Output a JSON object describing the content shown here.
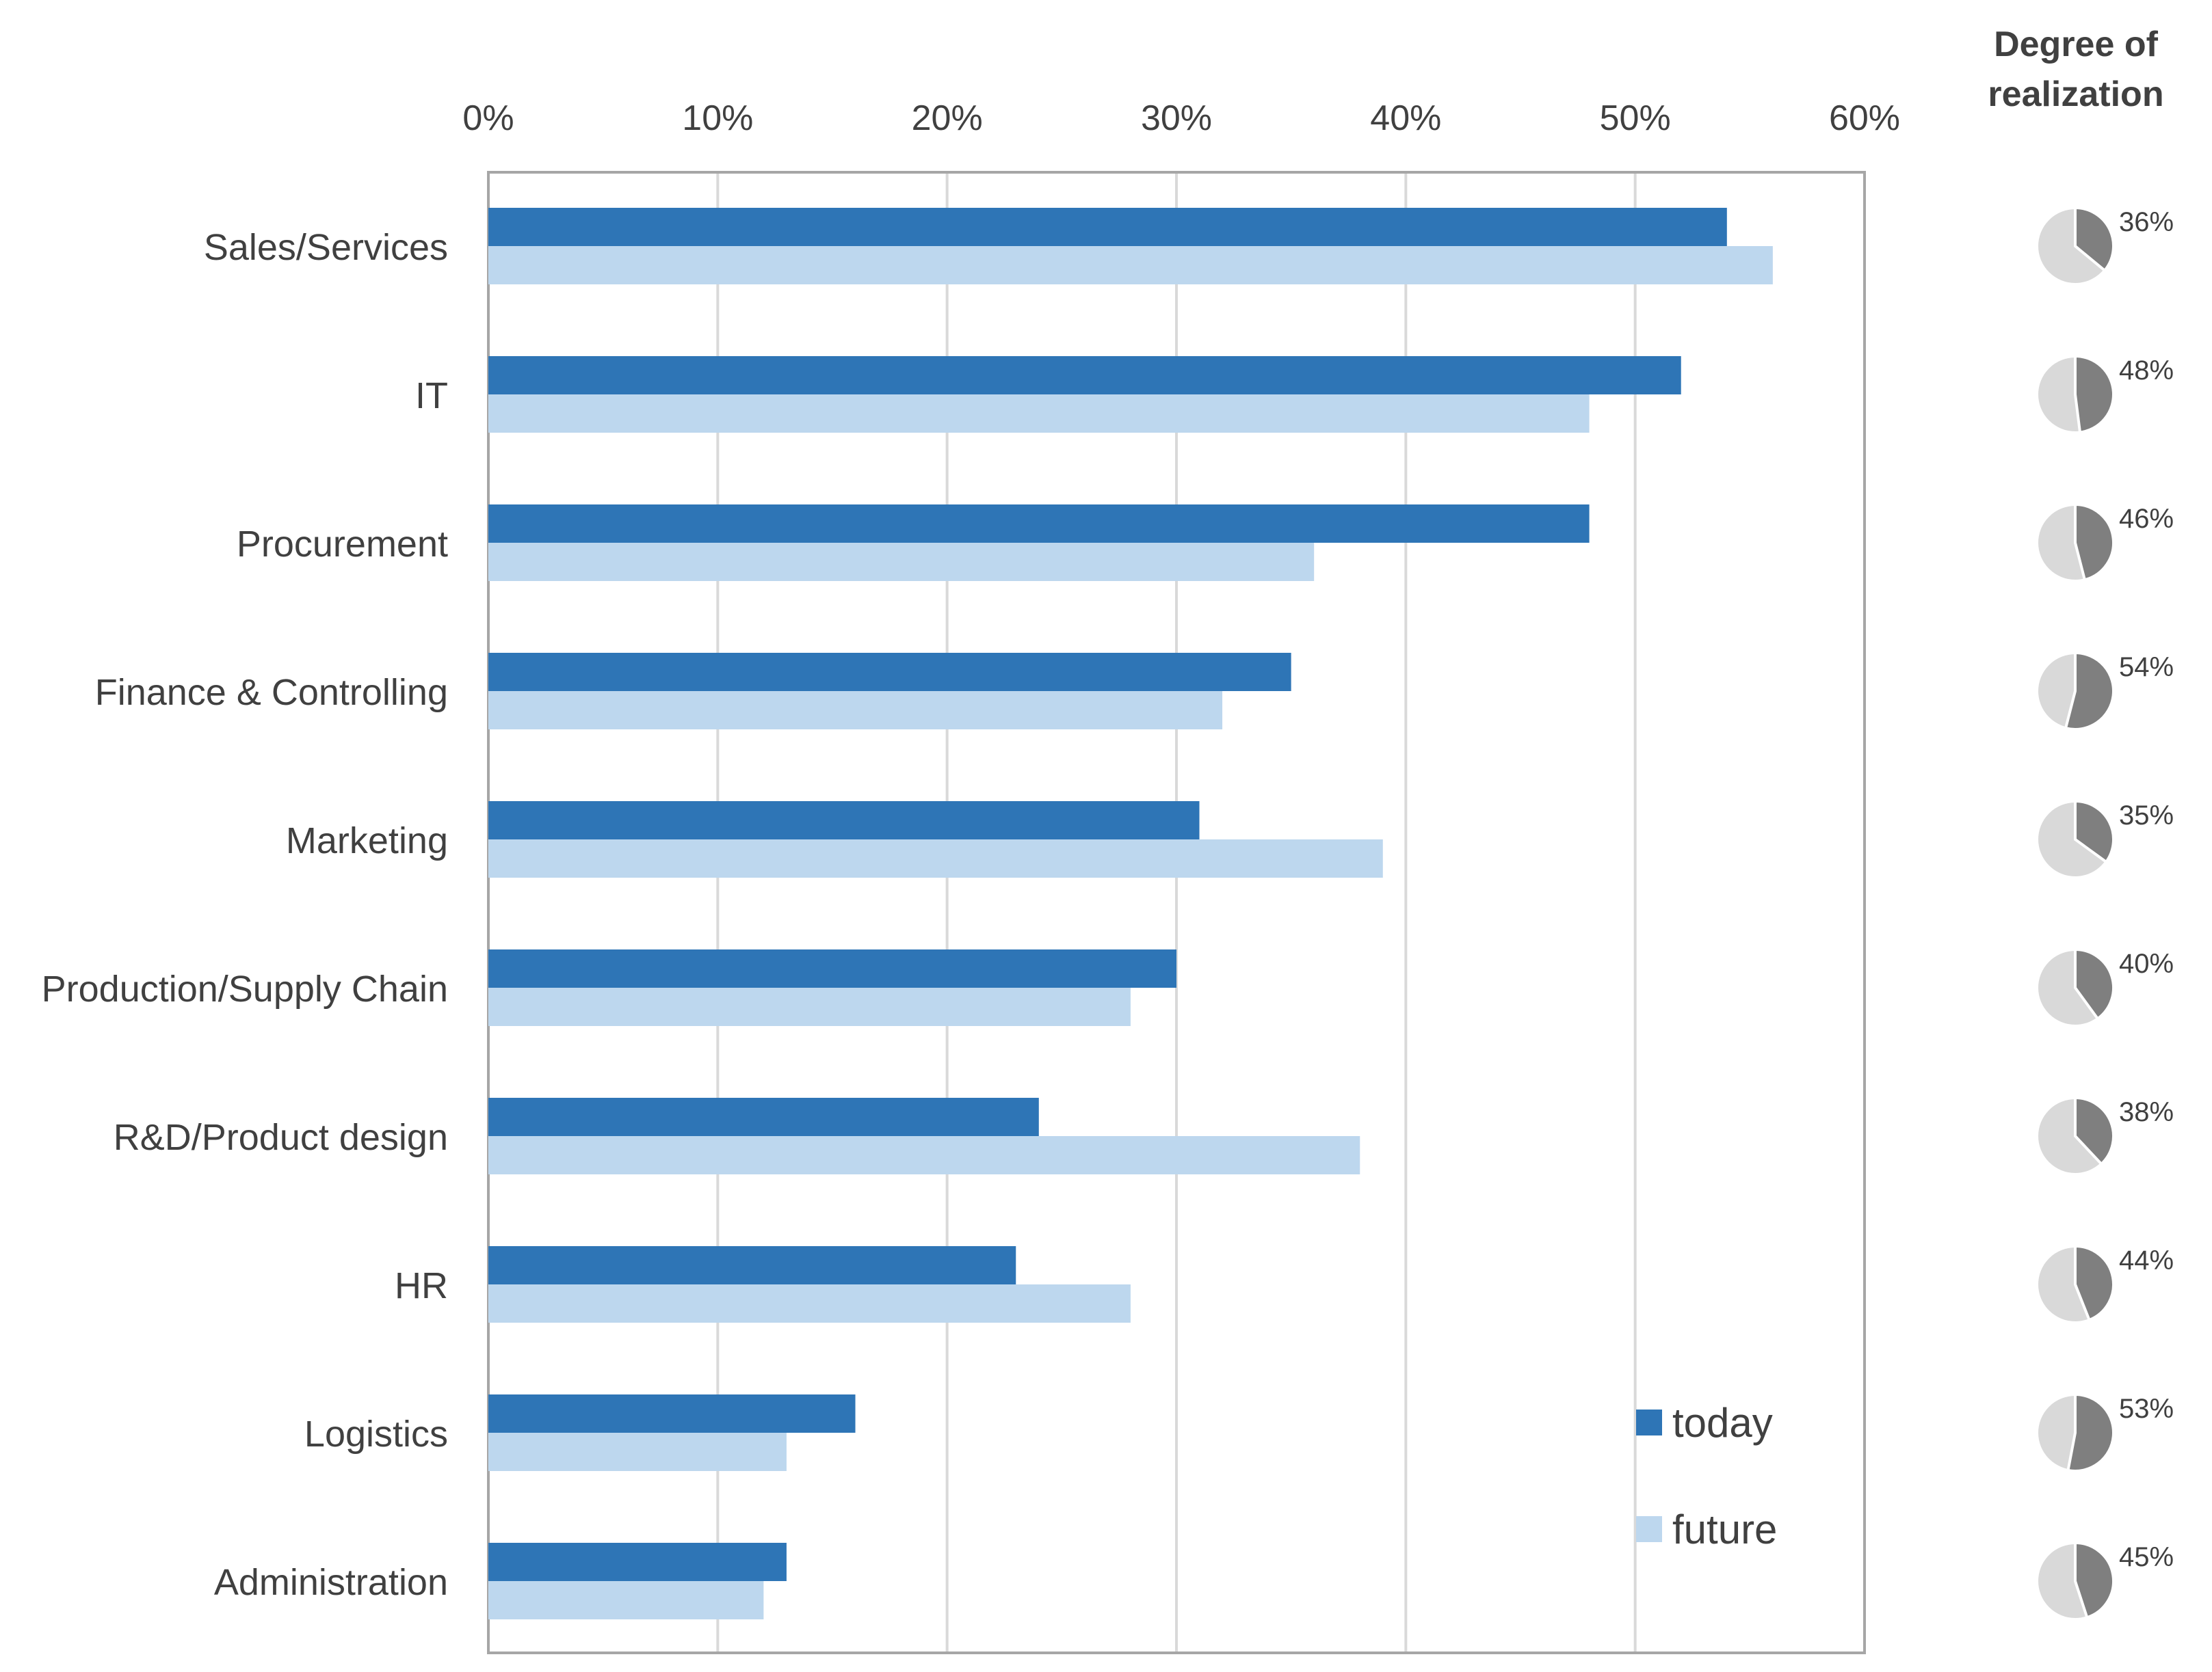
{
  "chart_data": {
    "type": "bar",
    "orientation": "horizontal",
    "categories": [
      "Sales/Services",
      "IT",
      "Procurement",
      "Finance & Controlling",
      "Marketing",
      "Production/Supply Chain",
      "R&D/Product design",
      "HR",
      "Logistics",
      "Administration"
    ],
    "series": [
      {
        "name": "today",
        "color": "#2E75B6",
        "values": [
          54,
          52,
          48,
          35,
          31,
          30,
          24,
          23,
          16,
          13
        ]
      },
      {
        "name": "future",
        "color": "#BDD7EE",
        "values": [
          56,
          48,
          36,
          32,
          39,
          28,
          38,
          28,
          13,
          12
        ]
      }
    ],
    "x_ticks": [
      "0%",
      "10%",
      "20%",
      "30%",
      "40%",
      "50%",
      "60%"
    ],
    "xlim": [
      0,
      60
    ],
    "x_axis_position": "top",
    "grid": true,
    "legend_position": "bottom-right",
    "title": "",
    "xlabel": "",
    "ylabel": "",
    "realization": {
      "title_line1": "Degree of",
      "title_line2": "realization",
      "values": [
        36,
        48,
        46,
        54,
        35,
        40,
        38,
        44,
        53,
        45
      ],
      "labels": [
        "36%",
        "48%",
        "46%",
        "54%",
        "35%",
        "40%",
        "38%",
        "44%",
        "53%",
        "45%"
      ],
      "filled_color": "#7F7F7F",
      "empty_color": "#D9D9D9"
    }
  }
}
